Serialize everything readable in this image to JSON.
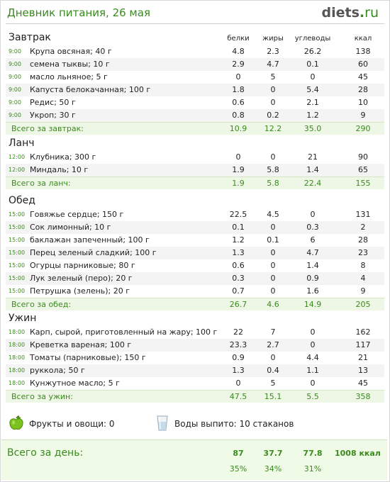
{
  "header": {
    "title": "Дневник питания, 26 мая",
    "logo_main": "diets",
    "logo_dot": ".",
    "logo_tld": "ru"
  },
  "columns": {
    "protein": "белки",
    "fat": "жиры",
    "carbs": "углеводы",
    "kcal": "ккал"
  },
  "meals": [
    {
      "title": "Завтрак",
      "items": [
        {
          "time": "9:00",
          "name": "Крупа овсяная; 40 г",
          "p": "4.8",
          "f": "2.3",
          "c": "26.2",
          "k": "138"
        },
        {
          "time": "9:00",
          "name": "семена тыквы; 10 г",
          "p": "2.9",
          "f": "4.7",
          "c": "0.1",
          "k": "60"
        },
        {
          "time": "9:00",
          "name": "масло льняное; 5 г",
          "p": "0",
          "f": "5",
          "c": "0",
          "k": "45"
        },
        {
          "time": "9:00",
          "name": "Капуста белокачанная; 100 г",
          "p": "1.8",
          "f": "0",
          "c": "5.4",
          "k": "28"
        },
        {
          "time": "9:00",
          "name": "Редис; 50 г",
          "p": "0.6",
          "f": "0",
          "c": "2.1",
          "k": "10"
        },
        {
          "time": "9:00",
          "name": "Укроп; 30 г",
          "p": "0.8",
          "f": "0.2",
          "c": "1.2",
          "k": "9"
        }
      ],
      "total": {
        "label": "Всего за завтрак:",
        "p": "10.9",
        "f": "12.2",
        "c": "35.0",
        "k": "290"
      }
    },
    {
      "title": "Ланч",
      "items": [
        {
          "time": "12:00",
          "name": "Клубника; 300 г",
          "p": "0",
          "f": "0",
          "c": "21",
          "k": "90"
        },
        {
          "time": "12:00",
          "name": "Миндаль; 10 г",
          "p": "1.9",
          "f": "5.8",
          "c": "1.4",
          "k": "65"
        }
      ],
      "total": {
        "label": "Всего за ланч:",
        "p": "1.9",
        "f": "5.8",
        "c": "22.4",
        "k": "155"
      }
    },
    {
      "title": "Обед",
      "items": [
        {
          "time": "15:00",
          "name": "Говяжье сердце; 150 г",
          "p": "22.5",
          "f": "4.5",
          "c": "0",
          "k": "131"
        },
        {
          "time": "15:00",
          "name": "Сок лимонный; 10 г",
          "p": "0.1",
          "f": "0",
          "c": "0.3",
          "k": "2"
        },
        {
          "time": "15:00",
          "name": "баклажан запеченный; 100 г",
          "p": "1.2",
          "f": "0.1",
          "c": "6",
          "k": "28"
        },
        {
          "time": "15:00",
          "name": "Перец зеленый сладкий; 100 г",
          "p": "1.3",
          "f": "0",
          "c": "4.7",
          "k": "23"
        },
        {
          "time": "15:00",
          "name": "Огурцы парниковые; 80 г",
          "p": "0.6",
          "f": "0",
          "c": "1.4",
          "k": "8"
        },
        {
          "time": "15:00",
          "name": "Лук зеленый (перо); 20 г",
          "p": "0.3",
          "f": "0",
          "c": "0.9",
          "k": "4"
        },
        {
          "time": "15:00",
          "name": "Петрушка (зелень); 20 г",
          "p": "0.7",
          "f": "0",
          "c": "1.6",
          "k": "9"
        }
      ],
      "total": {
        "label": "Всего за обед:",
        "p": "26.7",
        "f": "4.6",
        "c": "14.9",
        "k": "205"
      }
    },
    {
      "title": "Ужин",
      "items": [
        {
          "time": "18:00",
          "name": "Карп, сырой, приготовленный на жару; 100 г",
          "p": "22",
          "f": "7",
          "c": "0",
          "k": "162"
        },
        {
          "time": "18:00",
          "name": "Креветка вареная; 100 г",
          "p": "23.3",
          "f": "2.7",
          "c": "0",
          "k": "117"
        },
        {
          "time": "18:00",
          "name": "Томаты (парниковые); 150 г",
          "p": "0.9",
          "f": "0",
          "c": "4.4",
          "k": "21"
        },
        {
          "time": "18:00",
          "name": "руккола; 50 г",
          "p": "1.3",
          "f": "0.4",
          "c": "1.1",
          "k": "13"
        },
        {
          "time": "18:00",
          "name": "Кунжутное масло; 5 г",
          "p": "0",
          "f": "5",
          "c": "0",
          "k": "45"
        }
      ],
      "total": {
        "label": "Всего за ужин:",
        "p": "47.5",
        "f": "15.1",
        "c": "5.5",
        "k": "358"
      }
    }
  ],
  "extras": {
    "fruits_label": "Фрукты и овощи: 0",
    "water_label": "Воды выпито: 10 стаканов",
    "fruits_icon": "green-apple-icon",
    "water_icon": "water-glass-icon"
  },
  "day_total": {
    "label": "Всего за день:",
    "p": "87",
    "f": "37.7",
    "c": "77.8",
    "k": "1008 ккал",
    "p_pct": "35%",
    "f_pct": "34%",
    "c_pct": "31%"
  },
  "colors": {
    "accent": "#3a8a1e",
    "row_alt": "#f4f4f4",
    "total_bg": "#eef7e6"
  }
}
